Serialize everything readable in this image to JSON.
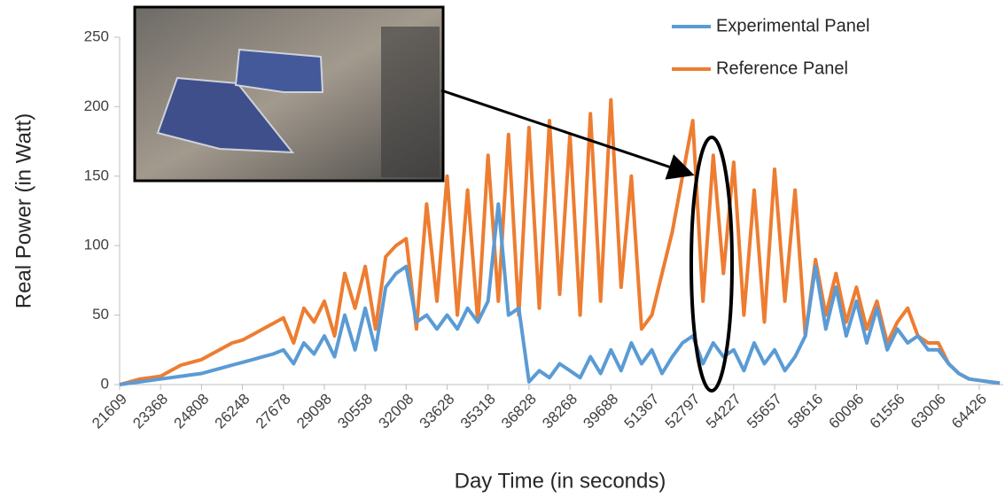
{
  "chart_data": {
    "type": "line",
    "y_label": "Real Power (in Watt)",
    "x_label": "Day Time (in seconds)",
    "categories": [
      "21609",
      null,
      null,
      null,
      "23368",
      null,
      null,
      null,
      "24808",
      null,
      null,
      null,
      "26248",
      null,
      null,
      null,
      "27678",
      null,
      null,
      null,
      "29098",
      null,
      null,
      null,
      "30558",
      null,
      null,
      null,
      "32008",
      null,
      null,
      null,
      "33628",
      null,
      null,
      null,
      "35318",
      null,
      null,
      null,
      "36828",
      null,
      null,
      null,
      "38268",
      null,
      null,
      null,
      "39688",
      null,
      null,
      null,
      "51367",
      null,
      null,
      null,
      "52797",
      null,
      null,
      null,
      "54227",
      null,
      null,
      null,
      "55657",
      null,
      null,
      null,
      "58616",
      null,
      null,
      null,
      "60096",
      null,
      null,
      null,
      "61556",
      null,
      null,
      null,
      "63006",
      null,
      null,
      null,
      "64426",
      null,
      null
    ],
    "series": [
      {
        "name": "Experimental Panel",
        "color": "#5b9bd5",
        "values": [
          0,
          1,
          2,
          3,
          4,
          5,
          6,
          7,
          8,
          10,
          12,
          14,
          16,
          18,
          20,
          22,
          25,
          15,
          30,
          22,
          35,
          20,
          50,
          25,
          55,
          25,
          70,
          80,
          85,
          45,
          50,
          40,
          50,
          40,
          55,
          45,
          60,
          130,
          50,
          55,
          2,
          10,
          5,
          15,
          10,
          5,
          20,
          8,
          25,
          10,
          30,
          15,
          25,
          8,
          20,
          30,
          35,
          15,
          30,
          20,
          25,
          10,
          30,
          15,
          25,
          10,
          20,
          35,
          85,
          40,
          70,
          35,
          60,
          30,
          55,
          25,
          40,
          30,
          35,
          25,
          25,
          15,
          8,
          4,
          3,
          2,
          1
        ]
      },
      {
        "name": "Reference Panel",
        "color": "#ed7d31",
        "values": [
          0,
          2,
          4,
          5,
          6,
          10,
          14,
          16,
          18,
          22,
          26,
          30,
          32,
          36,
          40,
          44,
          48,
          30,
          55,
          45,
          60,
          35,
          80,
          55,
          85,
          40,
          92,
          100,
          105,
          40,
          130,
          60,
          150,
          50,
          140,
          45,
          165,
          60,
          180,
          50,
          185,
          55,
          190,
          65,
          180,
          50,
          195,
          60,
          205,
          70,
          150,
          40,
          50,
          80,
          110,
          150,
          190,
          60,
          165,
          80,
          160,
          50,
          140,
          45,
          155,
          60,
          140,
          35,
          90,
          50,
          80,
          45,
          70,
          40,
          60,
          30,
          45,
          55,
          35,
          30,
          30,
          15,
          8,
          4,
          3,
          2,
          1
        ]
      }
    ],
    "ylim": [
      0,
      250
    ],
    "yticks": [
      0,
      50,
      100,
      150,
      200,
      250
    ],
    "grid": false,
    "legend": "top-right"
  }
}
